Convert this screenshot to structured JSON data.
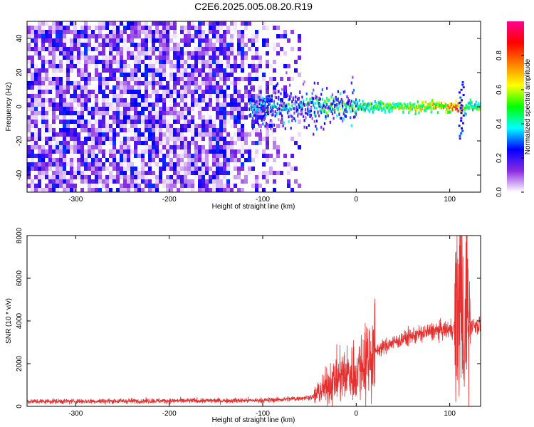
{
  "figure_title": "C2E6.2025.005.08.20.R19",
  "colors": {
    "snr_line": "#e53030",
    "axis": "#000000"
  },
  "chart_data": [
    {
      "type": "heatmap",
      "xlabel": "Height of straight line (km)",
      "ylabel": "Frequency (Hz)",
      "xlim": [
        -352,
        133
      ],
      "ylim": [
        -50,
        50
      ],
      "x_ticks": [
        "-300",
        "-200",
        "-100",
        "0",
        "100"
      ],
      "x_tick_values": [
        -300,
        -200,
        -100,
        0,
        100
      ],
      "y_ticks": [
        "-40",
        "-20",
        "0",
        "20",
        "40"
      ],
      "y_tick_values": [
        -40,
        -20,
        0,
        20,
        40
      ],
      "noise_region_x": [
        -352,
        -60
      ],
      "signal_band_x": [
        -115,
        133
      ],
      "signal_band_frequency_hz": 0,
      "peak_x": [
        100,
        115
      ],
      "vertical_spike_x": 112,
      "colorbar": {
        "label": "Normalized spectral amplitude",
        "range": [
          0,
          1
        ],
        "ticks": [
          "0.0",
          "0.2",
          "0.4",
          "0.6",
          "0.8"
        ],
        "tick_values": [
          0.0,
          0.2,
          0.4,
          0.6,
          0.8
        ],
        "colors": [
          "#ffffff",
          "#8a2be2",
          "#0000ff",
          "#00ffff",
          "#00ff00",
          "#ffff00",
          "#ff7f00",
          "#ff0000",
          "#ff0090"
        ]
      }
    },
    {
      "type": "line",
      "xlabel": "Height of straight line (km)",
      "ylabel": "SNR (10 * v/v)",
      "xlim": [
        -352,
        133
      ],
      "ylim": [
        0,
        8000
      ],
      "x_ticks": [
        "-300",
        "-200",
        "-100",
        "0",
        "100"
      ],
      "x_tick_values": [
        -300,
        -200,
        -100,
        0,
        100
      ],
      "y_ticks": [
        "0",
        "2000",
        "4000",
        "6000",
        "8000"
      ],
      "y_tick_values": [
        0,
        2000,
        4000,
        6000,
        8000
      ],
      "series": [
        {
          "x": [
            -352,
            -300,
            -250,
            -200,
            -150,
            -100,
            -80,
            -60,
            -45,
            -40,
            -35,
            -30,
            -20,
            -10,
            0,
            10,
            20,
            40,
            60,
            80,
            100,
            105,
            110,
            113,
            115,
            118,
            120,
            125,
            133
          ],
          "y": [
            230,
            240,
            250,
            260,
            270,
            280,
            320,
            380,
            450,
            700,
            800,
            1000,
            1300,
            1500,
            1600,
            2200,
            2600,
            3000,
            3300,
            3500,
            3600,
            3700,
            4500,
            7500,
            900,
            6500,
            3800,
            3800,
            3800
          ]
        }
      ]
    }
  ]
}
